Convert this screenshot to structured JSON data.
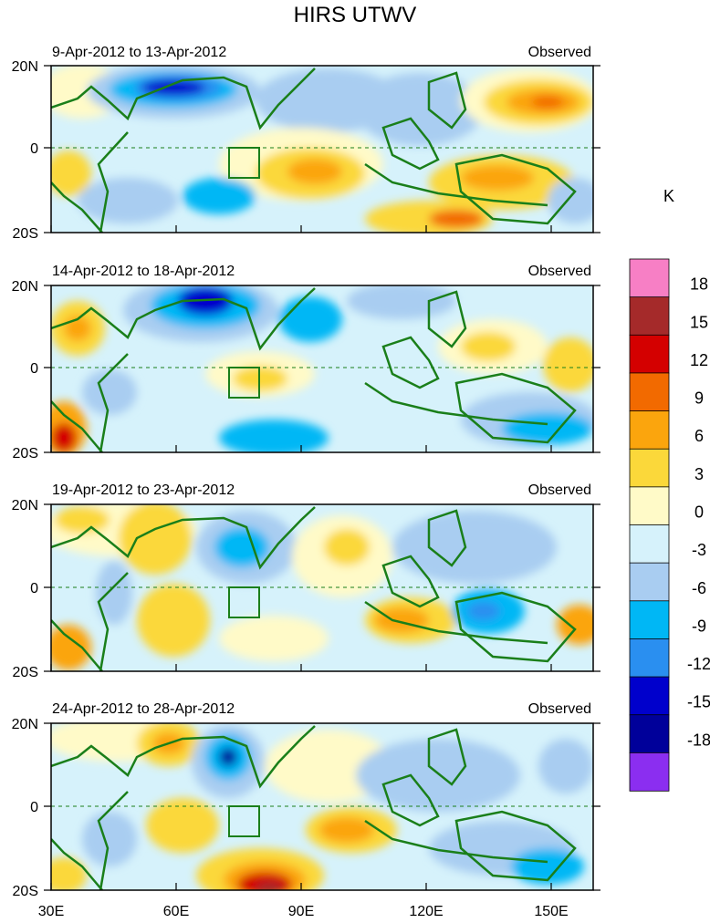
{
  "title": "HIRS UTWV",
  "colorbar": {
    "unit": "K",
    "labels": [
      "18",
      "15",
      "12",
      "9",
      "6",
      "3",
      "0",
      "-3",
      "-6",
      "-9",
      "-12",
      "-15",
      "-18"
    ],
    "colors": [
      "#f77fc5",
      "#a52a2a",
      "#d40000",
      "#f26a00",
      "#fba50d",
      "#fbd83a",
      "#fffac8",
      "#d6f2fb",
      "#a9cdf1",
      "#00b7f5",
      "#2a8ff0",
      "#0000cc",
      "#00009a",
      "#8b2ef0"
    ]
  },
  "panels": [
    {
      "date": "9-Apr-2012 to 13-Apr-2012",
      "type": "Observed"
    },
    {
      "date": "14-Apr-2012 to 18-Apr-2012",
      "type": "Observed"
    },
    {
      "date": "19-Apr-2012 to 23-Apr-2012",
      "type": "Observed"
    },
    {
      "date": "24-Apr-2012 to 28-Apr-2012",
      "type": "Observed"
    }
  ],
  "lat_labels": [
    "20N",
    "0",
    "20S"
  ],
  "lon_labels": [
    "30E",
    "60E",
    "90E",
    "120E",
    "150E"
  ],
  "map_extent": {
    "lon": [
      30,
      160
    ],
    "lat": [
      -20,
      20
    ]
  },
  "box_region": {
    "lon": [
      75,
      80
    ],
    "lat": [
      -7,
      0
    ]
  }
}
